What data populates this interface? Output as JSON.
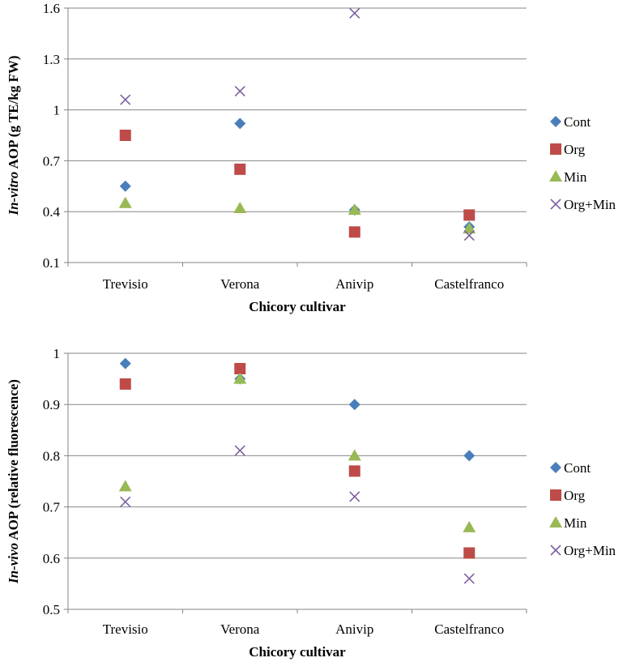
{
  "chart_data": [
    {
      "type": "scatter",
      "categories": [
        "Trevisio",
        "Verona",
        "Anivip",
        "Castelfranco"
      ],
      "ylabel_italic": "In-vitro",
      "ylabel_rest": " AOP (g TE/kg FW)",
      "xlabel": "Chicory cultivar",
      "ylim": [
        0.1,
        1.6
      ],
      "yticks": [
        0.1,
        0.4,
        0.7,
        1,
        1.3,
        1.6
      ],
      "ytick_labels": [
        "0.1",
        "0.4",
        "0.7",
        "1",
        "1.3",
        "1.6"
      ],
      "grid": true,
      "legend_position": "right",
      "series": [
        {
          "name": "Cont",
          "marker": "diamond",
          "color": "#4a7ebb",
          "values": [
            0.55,
            0.92,
            0.41,
            0.31
          ]
        },
        {
          "name": "Org",
          "marker": "square",
          "color": "#be4b48",
          "values": [
            0.85,
            0.65,
            0.28,
            0.38
          ]
        },
        {
          "name": "Min",
          "marker": "triangle",
          "color": "#98b954",
          "values": [
            0.45,
            0.42,
            0.41,
            0.3
          ]
        },
        {
          "name": "Org+Min",
          "marker": "x",
          "color": "#7d60a0",
          "values": [
            1.06,
            1.11,
            1.57,
            0.26
          ]
        }
      ]
    },
    {
      "type": "scatter",
      "categories": [
        "Trevisio",
        "Verona",
        "Anivip",
        "Castelfranco"
      ],
      "ylabel_italic": "In-vivo",
      "ylabel_rest": " AOP (relative fluorescence)",
      "xlabel": "Chicory cultivar",
      "ylim": [
        0.5,
        1.0
      ],
      "yticks": [
        0.5,
        0.6,
        0.7,
        0.8,
        0.9,
        1.0
      ],
      "ytick_labels": [
        "0.5",
        "0.6",
        "0.7",
        "0.8",
        "0.9",
        "1"
      ],
      "grid": true,
      "legend_position": "right",
      "series": [
        {
          "name": "Cont",
          "marker": "diamond",
          "color": "#4a7ebb",
          "values": [
            0.98,
            0.95,
            0.9,
            0.8
          ]
        },
        {
          "name": "Org",
          "marker": "square",
          "color": "#be4b48",
          "values": [
            0.94,
            0.97,
            0.77,
            0.61
          ]
        },
        {
          "name": "Min",
          "marker": "triangle",
          "color": "#98b954",
          "values": [
            0.74,
            0.95,
            0.8,
            0.66
          ]
        },
        {
          "name": "Org+Min",
          "marker": "x",
          "color": "#7d60a0",
          "values": [
            0.71,
            0.81,
            0.72,
            0.56
          ]
        }
      ]
    }
  ]
}
